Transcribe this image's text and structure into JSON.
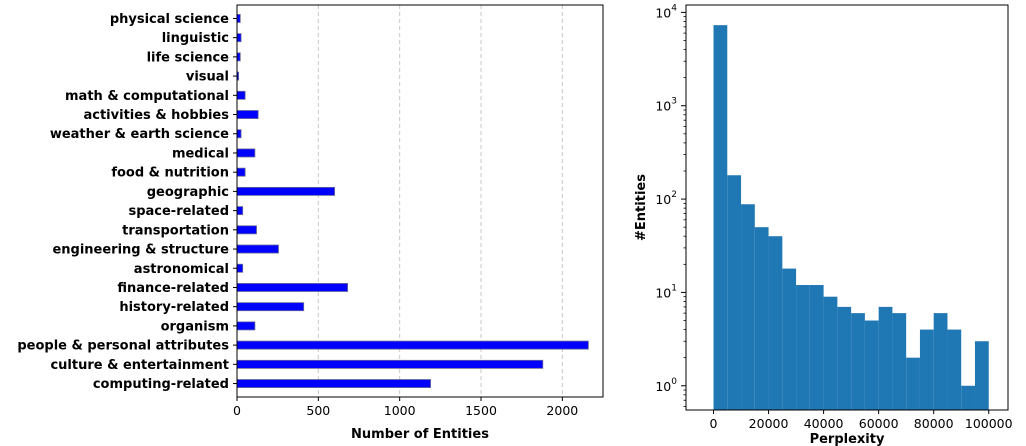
{
  "chart_data": [
    {
      "type": "bar",
      "orientation": "horizontal",
      "title": "",
      "xlabel": "Number of Entities",
      "ylabel": "",
      "xlim": [
        0,
        2250
      ],
      "xticks": [
        0,
        500,
        1000,
        1500,
        2000
      ],
      "grid": "x-dashed",
      "bar_color": "#0000ff",
      "categories": [
        "physical science",
        "linguistic",
        "life science",
        "visual",
        "math & computational",
        "activities & hobbies",
        "weather & earth science",
        "medical",
        "food & nutrition",
        "geographic",
        "space-related",
        "transportation",
        "engineering & structure",
        "astronomical",
        "finance-related",
        "history-related",
        "organism",
        "people & personal attributes",
        "culture & entertainment",
        "computing-related"
      ],
      "values": [
        20,
        25,
        20,
        10,
        50,
        130,
        25,
        110,
        50,
        600,
        35,
        120,
        255,
        35,
        680,
        410,
        110,
        2160,
        1880,
        1190
      ]
    },
    {
      "type": "bar",
      "subtype": "histogram",
      "title": "",
      "xlabel": "Perplexity",
      "ylabel": "#Entities",
      "yscale": "log",
      "xlim": [
        -10000,
        107000
      ],
      "ylim": [
        0.55,
        12000
      ],
      "xticks": [
        0,
        20000,
        40000,
        60000,
        80000,
        100000
      ],
      "yticks": [
        "10^0",
        "10^1",
        "10^2",
        "10^3",
        "10^4"
      ],
      "bar_color": "#1f77b4",
      "bin_width": 5000,
      "bin_starts": [
        0,
        5000,
        10000,
        15000,
        20000,
        25000,
        30000,
        35000,
        40000,
        45000,
        50000,
        55000,
        60000,
        65000,
        70000,
        75000,
        80000,
        85000,
        90000,
        95000
      ],
      "values": [
        7300,
        180,
        88,
        50,
        40,
        18,
        12,
        12,
        9,
        7,
        6,
        5,
        7,
        6,
        2,
        4,
        6,
        4,
        1,
        3
      ]
    }
  ]
}
